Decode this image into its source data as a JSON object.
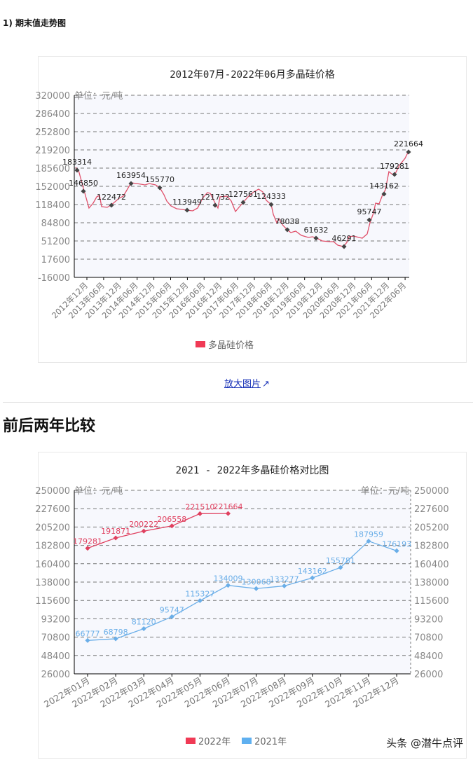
{
  "section1": {
    "label": "1) 期末值走势图"
  },
  "chart1": {
    "title": "2012年07月-2022年06月多晶硅价格",
    "unit": "单位：元/吨",
    "legend": "多晶硅价格",
    "color": "#e0405f"
  },
  "zoom_link": {
    "label": "放大图片"
  },
  "section2": {
    "title": "前后两年比较"
  },
  "chart2": {
    "title": "2021 - 2022年多晶硅价格对比图",
    "unit_left": "单位：元/吨",
    "unit_right": "单位：元/吨",
    "legend_2022": "2022年",
    "legend_2021": "2021年",
    "color_2022": "#e0405f",
    "color_2021": "#6aaee8"
  },
  "watermark": "头条 @潜牛点评",
  "chart_data": [
    {
      "type": "line",
      "title": "2012年07月-2022年06月多晶硅价格",
      "ylabel": "单位：元/吨",
      "ylim": [
        -16000,
        320000
      ],
      "yticks": [
        320000,
        286400,
        252800,
        219200,
        185600,
        152000,
        118400,
        84800,
        51200,
        17600,
        -16000
      ],
      "categories": [
        "2012年12月",
        "2013年06月",
        "2013年12月",
        "2014年06月",
        "2014年12月",
        "2015年06月",
        "2015年12月",
        "2016年06月",
        "2016年12月",
        "2017年06月",
        "2017年12月",
        "2018年06月",
        "2018年12月",
        "2019年06月",
        "2019年12月",
        "2020年06月",
        "2020年12月",
        "2021年06月",
        "2021年12月",
        "2022年06月"
      ],
      "series": [
        {
          "name": "多晶硅价格",
          "labeled_points": [
            183314,
            146850,
            122472,
            163954,
            155770,
            113949,
            121732,
            127561,
            124333,
            78038,
            61632,
            46291,
            95747,
            143162,
            179281,
            221664
          ]
        }
      ],
      "legend": [
        "多晶硅价格"
      ],
      "grid": true
    },
    {
      "type": "line",
      "title": "2021 - 2022年多晶硅价格对比图",
      "ylabel": "单位：元/吨",
      "ylim": [
        26000,
        250000
      ],
      "yticks": [
        250000,
        227600,
        205200,
        182800,
        160400,
        138000,
        115600,
        93200,
        70800,
        48400,
        26000
      ],
      "categories": [
        "2022年01月",
        "2022年02月",
        "2022年03月",
        "2022年04月",
        "2022年05月",
        "2022年06月",
        "2022年07月",
        "2022年08月",
        "2022年09月",
        "2022年10月",
        "2022年11月",
        "2022年12月"
      ],
      "series": [
        {
          "name": "2022年",
          "values": [
            179281,
            191871,
            200222,
            206558,
            221510,
            221664
          ]
        },
        {
          "name": "2021年",
          "values": [
            66777,
            68798,
            81120,
            95747,
            115327,
            134009,
            130068,
            133277,
            143162,
            155781,
            187959,
            176193
          ]
        }
      ],
      "legend": [
        "2022年",
        "2021年"
      ],
      "grid": true
    }
  ]
}
